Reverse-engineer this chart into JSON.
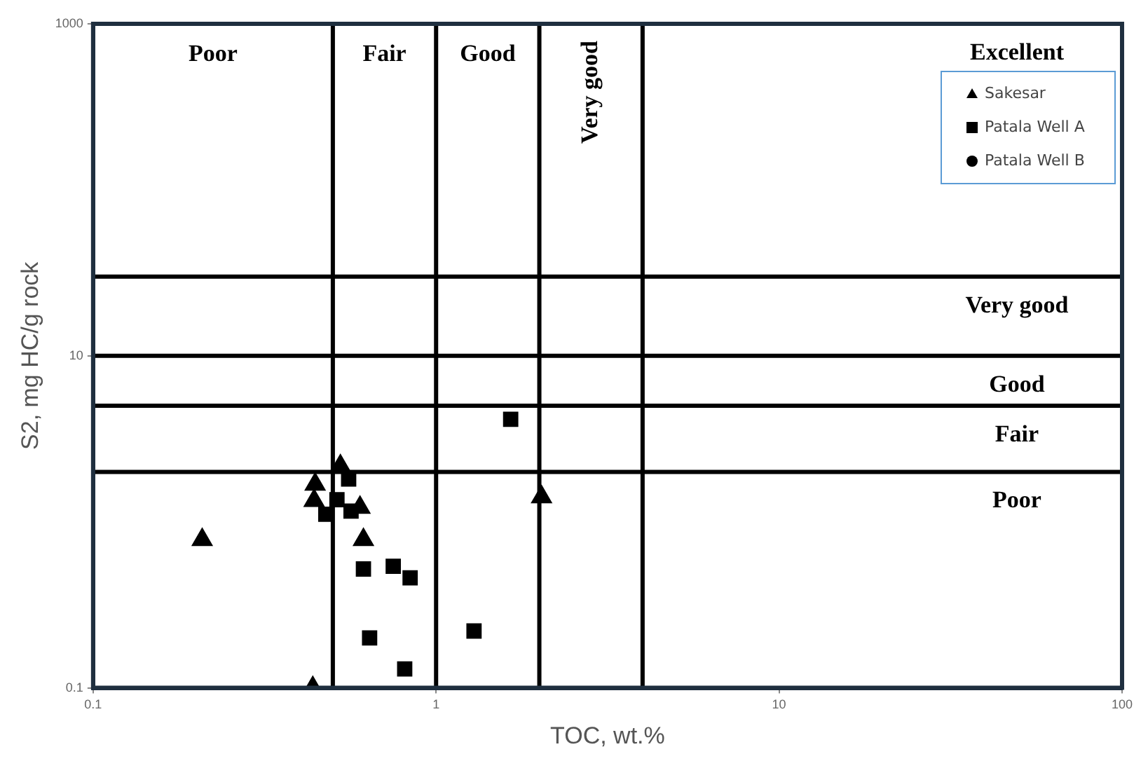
{
  "chart_data": {
    "type": "scatter",
    "xlabel": "TOC, wt.%",
    "ylabel": "S2, mg HC/g rock",
    "log": "xy",
    "xlim": [
      0.1,
      100
    ],
    "ylim": [
      0.1,
      1000
    ],
    "xticks": [
      0.1,
      1,
      10,
      100
    ],
    "yticks": [
      0.1,
      10,
      1000
    ],
    "grid": false,
    "legend": "top right",
    "series": [
      {
        "name": "Sakesar",
        "color": "#000000",
        "marker": "triangle",
        "x": [
          0.208,
          0.444,
          0.441,
          0.526,
          0.6,
          0.614,
          2.03,
          0.437
        ],
        "values": [
          0.78,
          1.68,
          1.34,
          2.17,
          1.22,
          0.78,
          1.41,
          0.1
        ]
      },
      {
        "name": "Patala Well A",
        "color": "#000000",
        "marker": "square",
        "x": [
          0.556,
          0.514,
          0.477,
          0.565,
          0.614,
          0.75,
          0.84,
          0.64,
          1.29,
          0.81,
          1.65
        ],
        "values": [
          1.81,
          1.36,
          1.11,
          1.16,
          0.52,
          0.54,
          0.46,
          0.2,
          0.22,
          0.13,
          4.15
        ]
      },
      {
        "name": "Patala Well B",
        "color": "#000000",
        "marker": "circle"
      }
    ],
    "ref_lines": [
      {
        "axis": "x",
        "value": 0.5,
        "color": "#000000"
      },
      {
        "axis": "x",
        "value": 1,
        "color": "#000000"
      },
      {
        "axis": "x",
        "value": 2,
        "color": "#000000"
      },
      {
        "axis": "x",
        "value": 4,
        "color": "#000000"
      },
      {
        "axis": "y",
        "value": 2,
        "color": "#000000"
      },
      {
        "axis": "y",
        "value": 5,
        "color": "#000000"
      },
      {
        "axis": "y",
        "value": 10,
        "color": "#000000"
      },
      {
        "axis": "y",
        "value": 30,
        "color": "#000000"
      }
    ],
    "annotations": [
      "Poor",
      "Fair",
      "Good",
      "Very good",
      "Excellent",
      "Very good",
      "Good",
      "Fair",
      "Poor"
    ]
  }
}
